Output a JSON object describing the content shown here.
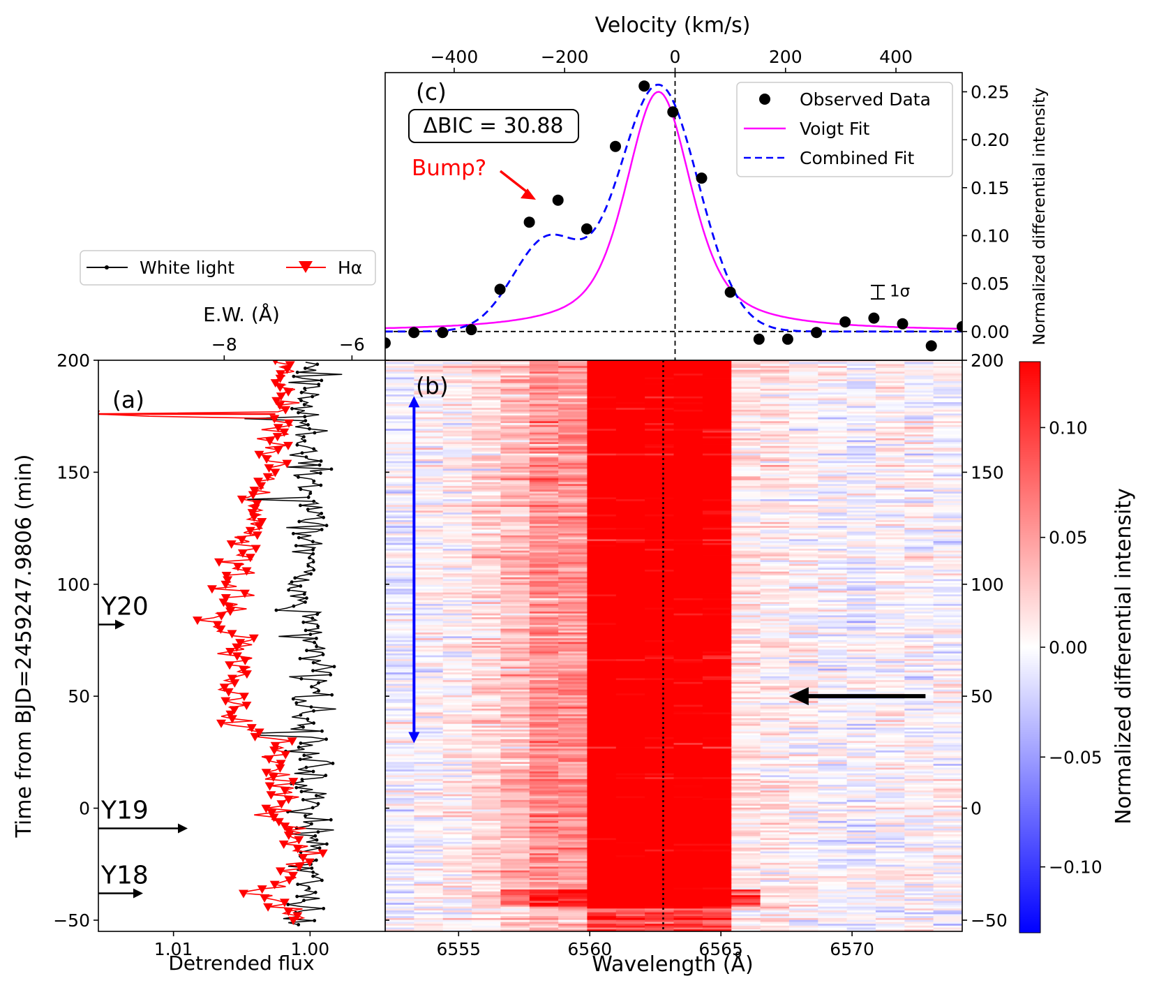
{
  "chart_data": [
    {
      "panel": "(a)",
      "type": "line",
      "title": "",
      "xlabel": "Detrended flux",
      "x2label": "E.W. (Å)",
      "ylabel": "Time from BJD=2459247.9806 (min)",
      "xlim": [
        1.0155,
        0.9945
      ],
      "x2lim": [
        -9.97,
        -5.48
      ],
      "ylim": [
        -55,
        200
      ],
      "xticks": [
        "1.01",
        "1.00"
      ],
      "x2ticks": [
        "−8",
        "−6"
      ],
      "yticks": [
        "200",
        "150",
        "100",
        "50",
        "0",
        "−50"
      ],
      "legend": [
        {
          "label": "White light",
          "color": "#000000",
          "marker": "dot"
        },
        {
          "label": "Hα",
          "color": "#ff0000",
          "marker": "triangle-down"
        }
      ],
      "annotations": [
        {
          "text": "Y20",
          "time": 82
        },
        {
          "text": "Y19",
          "time": -9
        },
        {
          "text": "Y18",
          "time": -38
        }
      ],
      "series": [
        {
          "name": "White light",
          "axis": "Detrended flux",
          "color": "#000000",
          "description": "flux scatters around 1.000 (about 0.998-1.002) with several short spikes toward 1.005 near 174, 138, 90 and 33 min"
        },
        {
          "name": "Hα",
          "axis": "E.W. (Å)",
          "color": "#ff0000",
          "time": [
            -50,
            -45,
            -38,
            -30,
            -20,
            -10,
            0,
            10,
            20,
            30,
            38,
            45,
            55,
            65,
            75,
            82,
            90,
            100,
            110,
            120,
            130,
            140,
            150,
            160,
            170,
            176,
            185,
            195,
            200
          ],
          "ew": [
            -6.9,
            -7.0,
            -7.6,
            -6.9,
            -6.8,
            -7.0,
            -7.1,
            -7.2,
            -7.3,
            -7.1,
            -7.9,
            -7.8,
            -7.9,
            -7.8,
            -7.6,
            -8.3,
            -7.7,
            -7.9,
            -7.8,
            -7.6,
            -7.4,
            -7.5,
            -7.3,
            -7.2,
            -7.1,
            -9.9,
            -7.1,
            -7.0,
            -7.2
          ]
        }
      ]
    },
    {
      "panel": "(b)",
      "type": "heatmap",
      "title": "",
      "xlabel": "Wavelength (Å)",
      "ylabel": "",
      "xlim": [
        6552.2,
        6574.2
      ],
      "ylim": [
        -55,
        200
      ],
      "xticks": [
        "6555",
        "6560",
        "6565",
        "6570"
      ],
      "yticks": [
        "200",
        "150",
        "100",
        "50",
        "0",
        "−50"
      ],
      "colorbar": {
        "label": "Normalized differential intensity",
        "colormap": "bwr",
        "range": [
          -0.13,
          0.13
        ],
        "ticks": [
          "0.10",
          "0.05",
          "0.00",
          "−0.05",
          "−0.10"
        ]
      },
      "annotations": [
        {
          "type": "double-arrow",
          "color": "#0000ff",
          "from_time": 29,
          "to_time": 184,
          "wavelength": 6553.3
        },
        {
          "type": "arrow",
          "color": "#000000",
          "time": 50,
          "from_wavelength": 6572.8,
          "to_wavelength": 6567.6
        },
        {
          "type": "vline",
          "style": "dotted",
          "wavelength": 6562.8
        }
      ],
      "description": "strong positive emission between 6556.5 and 6565 Å, strongest 6560-6565 Å; weak near-zero noise outside; an enhanced horizontal stripe near -40 min"
    },
    {
      "panel": "(c)",
      "type": "scatter",
      "title": "",
      "xlabel": "Velocity (km/s)",
      "ylabel": "Normalized differential intensity",
      "xlim": [
        -525,
        520
      ],
      "ylim": [
        -0.03,
        0.27
      ],
      "xticks": [
        "−400",
        "−200",
        "0",
        "200",
        "400"
      ],
      "yticks": [
        "0.25",
        "0.20",
        "0.15",
        "0.10",
        "0.05",
        "0.00"
      ],
      "legend": [
        {
          "label": "Observed Data",
          "color": "#000000",
          "style": "marker"
        },
        {
          "label": "Voigt Fit",
          "color": "#ff00ff",
          "style": "solid"
        },
        {
          "label": "Combined Fit",
          "color": "#0000ff",
          "style": "dashed"
        }
      ],
      "annotations": {
        "panel_label": "(c)",
        "delta_bic": "ΔBIC = 30.88",
        "bump": "Bump?",
        "sigma": "1σ",
        "sigma_half_height": 0.007
      },
      "series": [
        {
          "name": "Observed Data",
          "x": [
            -525,
            -473,
            -421,
            -369,
            -317,
            -264,
            -212,
            -160,
            -108,
            -56,
            -4,
            48,
            100,
            152,
            204,
            256,
            308,
            360,
            412,
            464,
            520
          ],
          "y": [
            -0.012,
            -0.001,
            -0.001,
            0.002,
            0.044,
            0.114,
            0.137,
            0.107,
            0.193,
            0.256,
            0.229,
            0.16,
            0.041,
            -0.008,
            -0.008,
            -0.001,
            0.01,
            0.014,
            0.008,
            -0.015,
            0.005
          ]
        },
        {
          "name": "Voigt Fit",
          "center": -30,
          "peak": 0.25,
          "gauss_sigma": 55,
          "lorentz_gamma": 80
        },
        {
          "name": "Combined Fit",
          "center": -30,
          "peak": 0.257,
          "main_sigma": 72,
          "bump_center": -232,
          "bump_amp": 0.095,
          "bump_sigma": 62
        }
      ]
    }
  ]
}
